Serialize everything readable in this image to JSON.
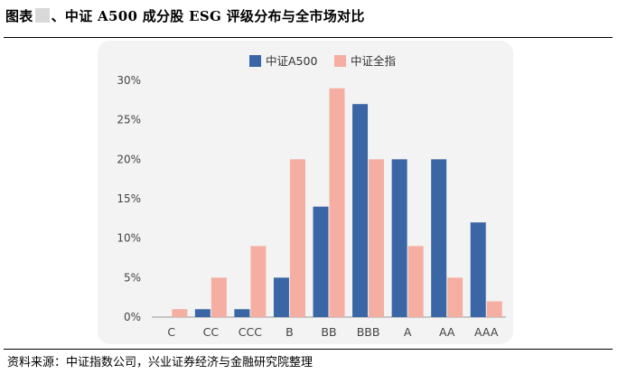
{
  "header": {
    "title_prefix": "图表",
    "title_main": "、中证 A500 成分股 ESG 评级分布与全市场对比"
  },
  "footer": {
    "source": "资料来源：中证指数公司，兴业证券经济与金融研究院整理"
  },
  "colors": {
    "series_a": "#3a66a6",
    "series_b": "#f4aea2",
    "panel": "#f3f3f3"
  },
  "chart_data": {
    "type": "bar",
    "title": "",
    "xlabel": "",
    "ylabel": "",
    "categories": [
      "C",
      "CC",
      "CCC",
      "B",
      "BB",
      "BBB",
      "A",
      "AA",
      "AAA"
    ],
    "series": [
      {
        "name": "中证A500",
        "values": [
          0,
          1,
          1,
          5,
          14,
          27,
          20,
          20,
          12
        ]
      },
      {
        "name": "中证全指",
        "values": [
          1,
          5,
          9,
          20,
          29,
          20,
          9,
          5,
          2
        ]
      }
    ],
    "y_ticks": [
      "0%",
      "5%",
      "10%",
      "15%",
      "20%",
      "25%",
      "30%"
    ],
    "ylim": [
      0,
      30
    ],
    "grid": false,
    "legend_position": "top-center"
  }
}
